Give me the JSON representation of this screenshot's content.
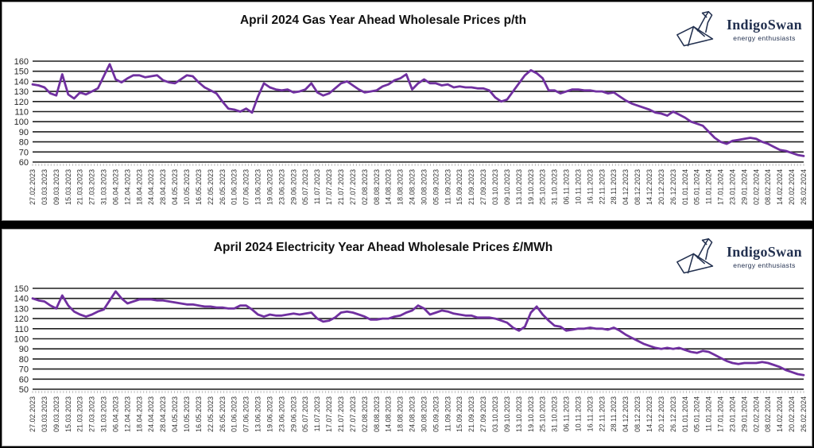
{
  "brand": {
    "name": "IndigoSwan",
    "tagline": "energy enthusiasts",
    "color": "#22304f"
  },
  "chart_data": [
    {
      "type": "line",
      "title": "April 2024 Gas Year Ahead Wholesale Prices p/th",
      "unit": "p/th",
      "line_color": "#7030A0",
      "grid_color": "#1f1f1f",
      "ylim": [
        60,
        160
      ],
      "y_step": 10,
      "y_ticks": [
        60,
        70,
        80,
        90,
        100,
        110,
        120,
        130,
        140,
        150,
        160
      ],
      "legend": "none",
      "samples_per_category": 2,
      "categories": [
        "27.02.2023",
        "03.03.2023",
        "09.03.2023",
        "15.03.2023",
        "21.03.2023",
        "27.03.2023",
        "31.03.2023",
        "06.04.2023",
        "12.04.2023",
        "18.04.2023",
        "24.04.2023",
        "28.04.2023",
        "04.05.2023",
        "10.05.2023",
        "16.05.2023",
        "22.05.2023",
        "26.05.2023",
        "01.06.2023",
        "07.06.2023",
        "13.06.2023",
        "19.06.2023",
        "23.06.2023",
        "29.06.2023",
        "05.07.2023",
        "11.07.2023",
        "17.07.2023",
        "21.07.2023",
        "27.07.2023",
        "02.08.2023",
        "08.08.2023",
        "14.08.2023",
        "18.08.2023",
        "24.08.2023",
        "30.08.2023",
        "05.09.2023",
        "11.09.2023",
        "15.09.2023",
        "21.09.2023",
        "27.09.2023",
        "03.10.2023",
        "09.10.2023",
        "13.10.2023",
        "19.10.2023",
        "25.10.2023",
        "31.10.2023",
        "06.11.2023",
        "10.11.2023",
        "16.11.2023",
        "22.11.2023",
        "28.11.2023",
        "04.12.2023",
        "08.12.2023",
        "14.12.2023",
        "20.12.2023",
        "26.12.2023",
        "01.01.2024",
        "05.01.2024",
        "11.01.2024",
        "17.01.2024",
        "23.01.2024",
        "29.01.2024",
        "02.02.2024",
        "08.02.2024",
        "14.02.2024",
        "20.02.2024",
        "26.02.2024"
      ],
      "values": [
        137,
        136,
        134,
        128,
        126,
        147,
        127,
        123,
        129,
        127,
        130,
        133,
        145,
        157,
        142,
        139,
        143,
        146,
        146,
        144,
        145,
        146,
        141,
        139,
        138,
        142,
        146,
        145,
        139,
        134,
        131,
        128,
        120,
        113,
        112,
        110,
        113,
        109,
        125,
        138,
        134,
        132,
        131,
        132,
        129,
        130,
        132,
        138,
        129,
        126,
        128,
        133,
        138,
        140,
        136,
        132,
        129,
        130,
        131,
        135,
        137,
        141,
        143,
        147,
        132,
        138,
        142,
        138,
        138,
        136,
        137,
        134,
        135,
        134,
        134,
        133,
        133,
        131,
        124,
        120,
        122,
        130,
        138,
        146,
        151,
        148,
        143,
        131,
        131,
        128,
        130,
        132,
        132,
        131,
        131,
        130,
        130,
        128,
        129,
        125,
        121,
        118,
        116,
        114,
        112,
        109,
        108,
        106,
        110,
        107,
        104,
        100,
        98,
        96,
        90,
        84,
        80,
        78,
        81,
        82,
        83,
        84,
        83,
        80,
        78,
        75,
        72,
        71,
        69,
        67,
        66
      ]
    },
    {
      "type": "line",
      "title": "April 2024 Electricity Year Ahead Wholesale Prices £/MWh",
      "unit": "£/MWh",
      "line_color": "#7030A0",
      "grid_color": "#1f1f1f",
      "ylim": [
        50,
        150
      ],
      "y_step": 10,
      "y_ticks": [
        50,
        60,
        70,
        80,
        90,
        100,
        110,
        120,
        130,
        140,
        150
      ],
      "legend": "none",
      "samples_per_category": 2,
      "categories": [
        "27.02.2023",
        "03.03.2023",
        "09.03.2023",
        "15.03.2023",
        "21.03.2023",
        "27.03.2023",
        "31.03.2023",
        "06.04.2023",
        "12.04.2023",
        "18.04.2023",
        "24.04.2023",
        "28.04.2023",
        "04.05.2023",
        "10.05.2023",
        "16.05.2023",
        "22.05.2023",
        "26.05.2023",
        "01.06.2023",
        "07.06.2023",
        "13.06.2023",
        "19.06.2023",
        "23.06.2023",
        "29.06.2023",
        "05.07.2023",
        "11.07.2023",
        "17.07.2023",
        "21.07.2023",
        "27.07.2023",
        "02.08.2023",
        "08.08.2023",
        "14.08.2023",
        "18.08.2023",
        "24.08.2023",
        "30.08.2023",
        "05.09.2023",
        "11.09.2023",
        "15.09.2023",
        "21.09.2023",
        "27.09.2023",
        "03.10.2023",
        "09.10.2023",
        "13.10.2023",
        "19.10.2023",
        "25.10.2023",
        "31.10.2023",
        "06.11.2023",
        "10.11.2023",
        "16.11.2023",
        "22.11.2023",
        "28.11.2023",
        "04.12.2023",
        "08.12.2023",
        "14.12.2023",
        "20.12.2023",
        "26.12.2023",
        "01.01.2024",
        "05.01.2024",
        "11.01.2024",
        "17.01.2024",
        "23.01.2024",
        "29.01.2024",
        "02.02.2024",
        "08.02.2024",
        "14.02.2024",
        "20.02.2024",
        "26.02.2024"
      ],
      "values": [
        140,
        138,
        137,
        133,
        130,
        143,
        133,
        127,
        124,
        122,
        124,
        127,
        129,
        138,
        147,
        140,
        135,
        137,
        139,
        139,
        139,
        138,
        138,
        137,
        136,
        135,
        134,
        134,
        133,
        132,
        132,
        131,
        131,
        130,
        130,
        133,
        133,
        129,
        124,
        122,
        124,
        123,
        123,
        124,
        125,
        124,
        125,
        126,
        120,
        117,
        118,
        121,
        126,
        127,
        126,
        124,
        122,
        119,
        119,
        120,
        120,
        122,
        123,
        126,
        128,
        133,
        130,
        124,
        126,
        128,
        127,
        125,
        124,
        123,
        123,
        121,
        121,
        121,
        120,
        118,
        116,
        111,
        108,
        112,
        126,
        132,
        124,
        118,
        113,
        112,
        108,
        109,
        110,
        110,
        111,
        110,
        110,
        109,
        111,
        108,
        104,
        101,
        98,
        95,
        93,
        91,
        90,
        91,
        90,
        91,
        89,
        87,
        86,
        88,
        87,
        84,
        81,
        78,
        76,
        75,
        76,
        76,
        76,
        77,
        76,
        74,
        72,
        69,
        67,
        65,
        64
      ]
    }
  ]
}
